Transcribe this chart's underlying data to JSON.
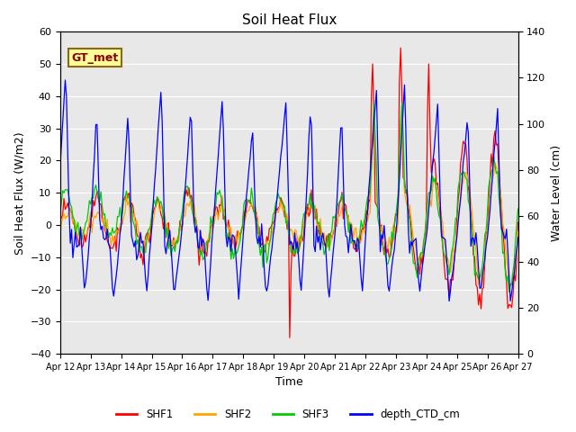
{
  "title": "Soil Heat Flux",
  "xlabel": "Time",
  "ylabel_left": "Soil Heat Flux (W/m2)",
  "ylabel_right": "Water Level (cm)",
  "ylim_left": [
    -40,
    60
  ],
  "ylim_right": [
    0,
    140
  ],
  "yticks_left": [
    -40,
    -30,
    -20,
    -10,
    0,
    10,
    20,
    30,
    40,
    50,
    60
  ],
  "yticks_right": [
    0,
    20,
    40,
    60,
    80,
    100,
    120,
    140
  ],
  "x_tick_labels": [
    "Apr 12",
    "Apr 13",
    "Apr 14",
    "Apr 15",
    "Apr 16",
    "Apr 17",
    "Apr 18",
    "Apr 19",
    "Apr 20",
    "Apr 21",
    "Apr 22",
    "Apr 23",
    "Apr 24",
    "Apr 25",
    "Apr 26",
    "Apr 27"
  ],
  "colors": {
    "SHF1": "#ff0000",
    "SHF2": "#ffa500",
    "SHF3": "#00cc00",
    "depth_CTD_cm": "#0000ff"
  },
  "bg_color": "#d8d8d8",
  "plot_bg": "#e8e8e8",
  "annotation_text": "GT_met",
  "annotation_bg": "#ffff99",
  "annotation_border": "#8b6914"
}
